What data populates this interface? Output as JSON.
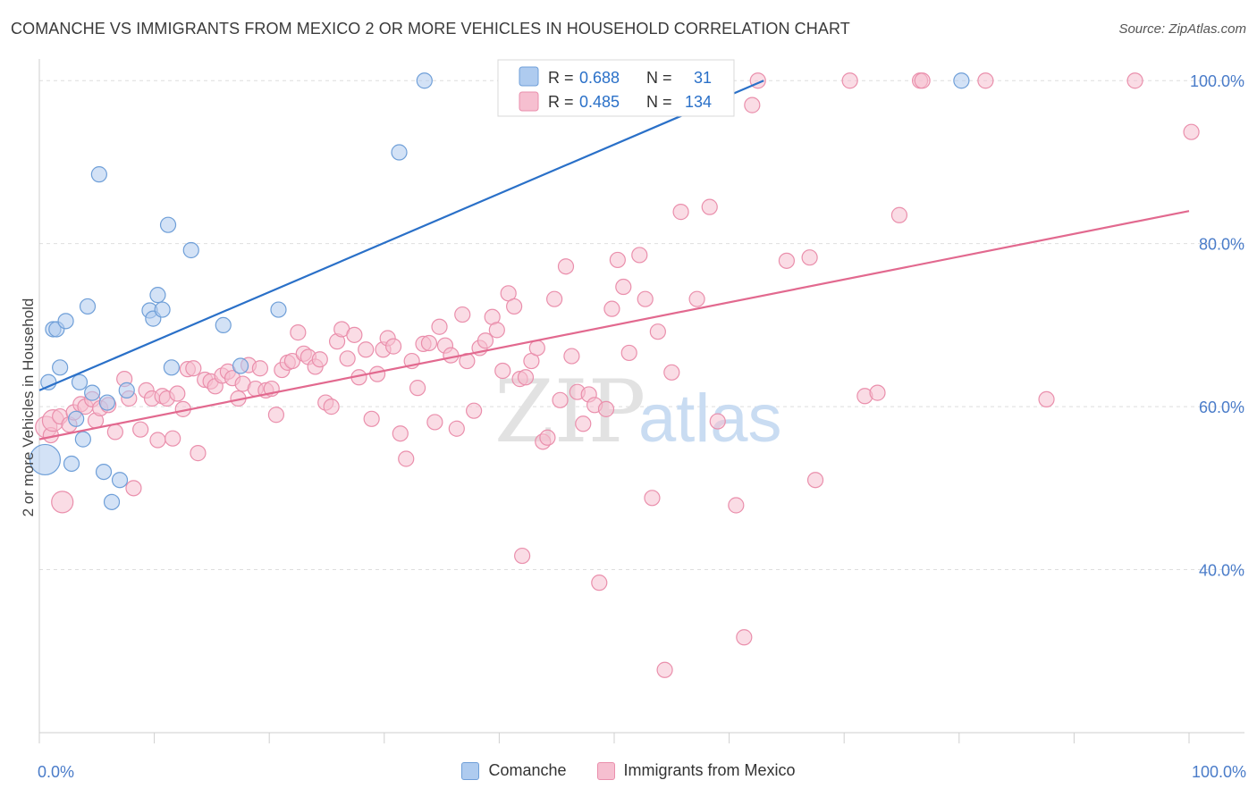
{
  "header": {
    "title": "COMANCHE VS IMMIGRANTS FROM MEXICO 2 OR MORE VEHICLES IN HOUSEHOLD CORRELATION CHART",
    "source": "Source: ZipAtlas.com"
  },
  "watermark": {
    "zip": "ZIP",
    "atlas": "atlas"
  },
  "stats_legend": {
    "rows": [
      {
        "r_label": "R =",
        "r_value": "0.688",
        "n_label": "N =",
        "n_value": "31"
      },
      {
        "r_label": "R =",
        "r_value": "0.485",
        "n_label": "N =",
        "n_value": "134"
      }
    ]
  },
  "colors": {
    "comanche_fill": "#aecbef",
    "comanche_stroke": "#6f9fd8",
    "comanche_line": "#2a70c8",
    "mexico_fill": "#f6bfd0",
    "mexico_stroke": "#ea8fac",
    "mexico_line": "#e2698f",
    "tick_label": "#4a7cc9",
    "value_text": "#2a70c8"
  },
  "chart_data": {
    "type": "scatter",
    "title": "COMANCHE VS IMMIGRANTS FROM MEXICO 2 OR MORE VEHICLES IN HOUSEHOLD CORRELATION CHART",
    "xlabel": "",
    "ylabel": "2 or more Vehicles in Household",
    "xlim": [
      0,
      100
    ],
    "ylim": [
      20,
      102
    ],
    "x_tick_labels": [
      "0.0%",
      "100.0%"
    ],
    "y_ticks": [
      40,
      60,
      80,
      100
    ],
    "y_tick_labels": [
      "40.0%",
      "60.0%",
      "80.0%",
      "100.0%"
    ],
    "grid": true,
    "legend_placement": "bottom",
    "series": [
      {
        "name": "Comanche",
        "trendline": {
          "x": [
            0,
            63
          ],
          "y": [
            62.0,
            100.0
          ]
        },
        "points": [
          [
            0.5,
            53.5,
            3
          ],
          [
            0.8,
            63.0,
            1
          ],
          [
            1.2,
            69.5,
            1
          ],
          [
            1.5,
            69.5,
            1
          ],
          [
            1.8,
            64.8,
            1
          ],
          [
            2.3,
            70.5,
            1
          ],
          [
            2.8,
            53.0,
            1
          ],
          [
            3.2,
            58.5,
            1
          ],
          [
            3.5,
            63.0,
            1
          ],
          [
            3.8,
            56.0,
            1
          ],
          [
            4.2,
            72.3,
            1
          ],
          [
            4.6,
            61.7,
            1
          ],
          [
            5.2,
            88.5,
            1
          ],
          [
            5.6,
            52.0,
            1
          ],
          [
            5.9,
            60.5,
            1
          ],
          [
            6.3,
            48.3,
            1
          ],
          [
            7.0,
            51.0,
            1
          ],
          [
            7.6,
            62.0,
            1
          ],
          [
            9.6,
            71.8,
            1
          ],
          [
            9.9,
            70.8,
            1
          ],
          [
            10.3,
            73.7,
            1
          ],
          [
            10.7,
            71.9,
            1
          ],
          [
            11.2,
            82.3,
            1
          ],
          [
            11.5,
            64.8,
            1
          ],
          [
            13.2,
            79.2,
            1
          ],
          [
            16.0,
            70.0,
            1
          ],
          [
            17.5,
            65.0,
            1
          ],
          [
            20.8,
            71.9,
            1
          ],
          [
            33.5,
            100.0,
            1
          ],
          [
            31.3,
            91.2,
            1
          ],
          [
            80.2,
            100.0,
            1
          ]
        ]
      },
      {
        "name": "Immigrants from Mexico",
        "trendline": {
          "x": [
            0,
            100
          ],
          "y": [
            56.0,
            84.0
          ]
        },
        "points": [
          [
            0.6,
            57.5,
            2
          ],
          [
            1.0,
            56.5,
            1
          ],
          [
            1.2,
            58.3,
            2
          ],
          [
            1.8,
            58.8,
            1
          ],
          [
            2.0,
            48.3,
            2
          ],
          [
            2.6,
            57.8,
            1
          ],
          [
            3.0,
            59.3,
            1
          ],
          [
            3.6,
            60.3,
            1
          ],
          [
            4.0,
            60.0,
            1
          ],
          [
            4.6,
            60.9,
            1
          ],
          [
            4.9,
            58.3,
            1
          ],
          [
            5.3,
            59.8,
            1
          ],
          [
            6.0,
            60.2,
            1
          ],
          [
            6.6,
            56.9,
            1
          ],
          [
            7.4,
            63.4,
            1
          ],
          [
            7.8,
            61.0,
            1
          ],
          [
            8.2,
            50.0,
            1
          ],
          [
            8.8,
            57.2,
            1
          ],
          [
            9.3,
            62.0,
            1
          ],
          [
            9.8,
            61.0,
            1
          ],
          [
            10.3,
            55.9,
            1
          ],
          [
            10.7,
            61.3,
            1
          ],
          [
            11.1,
            61.0,
            1
          ],
          [
            11.6,
            56.1,
            1
          ],
          [
            12.0,
            61.6,
            1
          ],
          [
            12.5,
            59.7,
            1
          ],
          [
            12.9,
            64.6,
            1
          ],
          [
            13.4,
            64.7,
            1
          ],
          [
            13.8,
            54.3,
            1
          ],
          [
            14.4,
            63.3,
            1
          ],
          [
            14.9,
            63.1,
            1
          ],
          [
            15.3,
            62.5,
            1
          ],
          [
            15.9,
            63.8,
            1
          ],
          [
            16.4,
            64.3,
            1
          ],
          [
            16.8,
            63.5,
            1
          ],
          [
            17.3,
            61.0,
            1
          ],
          [
            17.7,
            62.8,
            1
          ],
          [
            18.2,
            65.1,
            1
          ],
          [
            18.8,
            62.2,
            1
          ],
          [
            19.2,
            64.7,
            1
          ],
          [
            19.7,
            62.0,
            1
          ],
          [
            20.2,
            62.2,
            1
          ],
          [
            20.6,
            59.0,
            1
          ],
          [
            21.1,
            64.5,
            1
          ],
          [
            21.6,
            65.4,
            1
          ],
          [
            22.0,
            65.6,
            1
          ],
          [
            22.5,
            69.1,
            1
          ],
          [
            23.0,
            66.5,
            1
          ],
          [
            23.4,
            66.1,
            1
          ],
          [
            24.0,
            64.9,
            1
          ],
          [
            24.4,
            65.8,
            1
          ],
          [
            24.9,
            60.5,
            1
          ],
          [
            25.4,
            60.0,
            1
          ],
          [
            25.9,
            68.0,
            1
          ],
          [
            26.3,
            69.5,
            1
          ],
          [
            26.8,
            65.9,
            1
          ],
          [
            27.4,
            68.8,
            1
          ],
          [
            27.8,
            63.6,
            1
          ],
          [
            28.4,
            67.0,
            1
          ],
          [
            28.9,
            58.5,
            1
          ],
          [
            29.4,
            64.0,
            1
          ],
          [
            29.9,
            67.0,
            1
          ],
          [
            30.3,
            68.4,
            1
          ],
          [
            30.8,
            67.4,
            1
          ],
          [
            31.4,
            56.7,
            1
          ],
          [
            31.9,
            53.6,
            1
          ],
          [
            32.4,
            65.6,
            1
          ],
          [
            32.9,
            62.3,
            1
          ],
          [
            33.4,
            67.7,
            1
          ],
          [
            33.9,
            67.8,
            1
          ],
          [
            34.4,
            58.1,
            1
          ],
          [
            34.8,
            69.8,
            1
          ],
          [
            35.3,
            67.5,
            1
          ],
          [
            35.8,
            66.3,
            1
          ],
          [
            36.3,
            57.3,
            1
          ],
          [
            36.8,
            71.3,
            1
          ],
          [
            37.2,
            65.6,
            1
          ],
          [
            37.8,
            59.5,
            1
          ],
          [
            38.3,
            67.2,
            1
          ],
          [
            38.8,
            68.1,
            1
          ],
          [
            39.4,
            71.0,
            1
          ],
          [
            39.8,
            69.4,
            1
          ],
          [
            40.3,
            64.4,
            1
          ],
          [
            40.8,
            73.9,
            1
          ],
          [
            41.3,
            72.3,
            1
          ],
          [
            41.8,
            63.4,
            1
          ],
          [
            42.3,
            63.6,
            1
          ],
          [
            42.8,
            65.6,
            1
          ],
          [
            43.3,
            67.2,
            1
          ],
          [
            43.8,
            55.7,
            1
          ],
          [
            44.2,
            56.2,
            1
          ],
          [
            44.8,
            73.2,
            1
          ],
          [
            45.3,
            60.8,
            1
          ],
          [
            45.8,
            77.2,
            1
          ],
          [
            46.3,
            66.2,
            1
          ],
          [
            46.8,
            61.8,
            1
          ],
          [
            47.3,
            57.9,
            1
          ],
          [
            47.8,
            61.5,
            1
          ],
          [
            48.3,
            60.2,
            1
          ],
          [
            48.7,
            38.4,
            1
          ],
          [
            49.3,
            59.7,
            1
          ],
          [
            49.8,
            72.0,
            1
          ],
          [
            50.3,
            78.0,
            1
          ],
          [
            50.8,
            74.7,
            1
          ],
          [
            51.3,
            66.6,
            1
          ],
          [
            52.2,
            78.6,
            1
          ],
          [
            52.7,
            73.2,
            1
          ],
          [
            53.3,
            48.8,
            1
          ],
          [
            53.8,
            69.2,
            1
          ],
          [
            54.4,
            27.7,
            1
          ],
          [
            55.0,
            64.2,
            1
          ],
          [
            55.8,
            83.9,
            1
          ],
          [
            56.4,
            100.0,
            1
          ],
          [
            57.2,
            73.2,
            1
          ],
          [
            58.3,
            84.5,
            1
          ],
          [
            59.0,
            58.2,
            1
          ],
          [
            60.6,
            47.9,
            1
          ],
          [
            61.3,
            31.7,
            1
          ],
          [
            62.0,
            97.0,
            1
          ],
          [
            62.5,
            100.0,
            1
          ],
          [
            65.0,
            77.9,
            1
          ],
          [
            67.0,
            78.3,
            1
          ],
          [
            67.5,
            51.0,
            1
          ],
          [
            70.5,
            100.0,
            1
          ],
          [
            71.8,
            61.3,
            1
          ],
          [
            72.9,
            61.7,
            1
          ],
          [
            74.8,
            83.5,
            1
          ],
          [
            76.6,
            100.0,
            1
          ],
          [
            76.8,
            100.0,
            1
          ],
          [
            82.3,
            100.0,
            1
          ],
          [
            87.6,
            60.9,
            1
          ],
          [
            95.3,
            100.0,
            1
          ],
          [
            100.2,
            93.7,
            1
          ],
          [
            42.0,
            41.7,
            1
          ]
        ]
      }
    ]
  }
}
